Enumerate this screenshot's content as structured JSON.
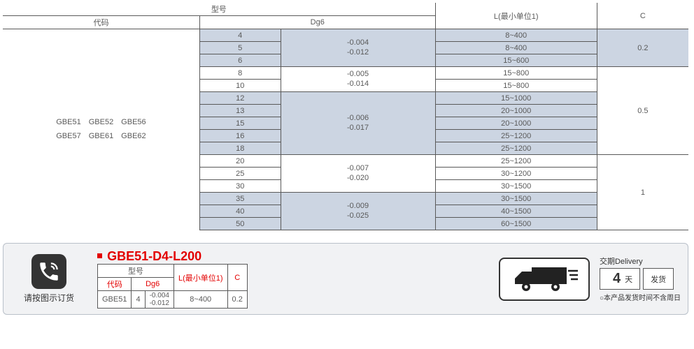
{
  "main_table": {
    "type": "table",
    "header": {
      "model_header": "型号",
      "L_header": "L(最小单位1)",
      "C_header": "C",
      "code_header": "代码",
      "dg6_header": "Dg6"
    },
    "codes_cell": "GBE51　GBE52　GBE56\nGBE57　GBE61　GBE62",
    "groups": [
      {
        "alt": true,
        "tol": "-0.004\n-0.012",
        "rows": [
          {
            "d": "4",
            "L": "8~400"
          },
          {
            "d": "5",
            "L": "8~400"
          },
          {
            "d": "6",
            "L": "15~600"
          }
        ],
        "C": "0.2",
        "C_rows": 3
      },
      {
        "alt": false,
        "tol": "-0.005\n-0.014",
        "rows": [
          {
            "d": "8",
            "L": "15~800"
          },
          {
            "d": "10",
            "L": "15~800"
          }
        ],
        "C": "0.5",
        "C_rows": 7
      },
      {
        "alt": true,
        "tol": "-0.006\n-0.017",
        "rows": [
          {
            "d": "12",
            "L": "15~1000"
          },
          {
            "d": "13",
            "L": "20~1000"
          },
          {
            "d": "15",
            "L": "20~1000"
          },
          {
            "d": "16",
            "L": "25~1200"
          },
          {
            "d": "18",
            "L": "25~1200"
          }
        ]
      },
      {
        "alt": false,
        "tol": "-0.007\n-0.020",
        "rows": [
          {
            "d": "20",
            "L": "25~1200"
          },
          {
            "d": "25",
            "L": "30~1200"
          },
          {
            "d": "30",
            "L": "30~1500"
          }
        ],
        "C": "1",
        "C_rows": 6
      },
      {
        "alt": true,
        "tol": "-0.009\n-0.025",
        "rows": [
          {
            "d": "35",
            "L": "30~1500"
          },
          {
            "d": "40",
            "L": "40~1500"
          },
          {
            "d": "50",
            "L": "60~1500"
          }
        ]
      }
    ],
    "colors": {
      "border": "#595959",
      "alt_bg": "#ccd5e2",
      "text": "#595959"
    }
  },
  "order_panel": {
    "phone_label": "请按图示订货",
    "example_title": "GBE51-D4-L200",
    "example_table": {
      "headers": {
        "model": "型号",
        "code": "代码",
        "dg6": "Dg6",
        "L": "L(最小单位1)",
        "C": "C"
      },
      "row": {
        "code": "GBE51",
        "d": "4",
        "tol": "-0.004\n-0.012",
        "L": "8~400",
        "C": "0.2"
      }
    },
    "delivery": {
      "title": "交期Delivery",
      "number": "4",
      "day_unit": "天",
      "ship": "发货",
      "note": "○本产品发货时间不含周日"
    },
    "colors": {
      "panel_bg": "#f1f2f4",
      "panel_border": "#b9c0c9",
      "accent_red": "#e30000",
      "icon_bg": "#333333"
    }
  }
}
